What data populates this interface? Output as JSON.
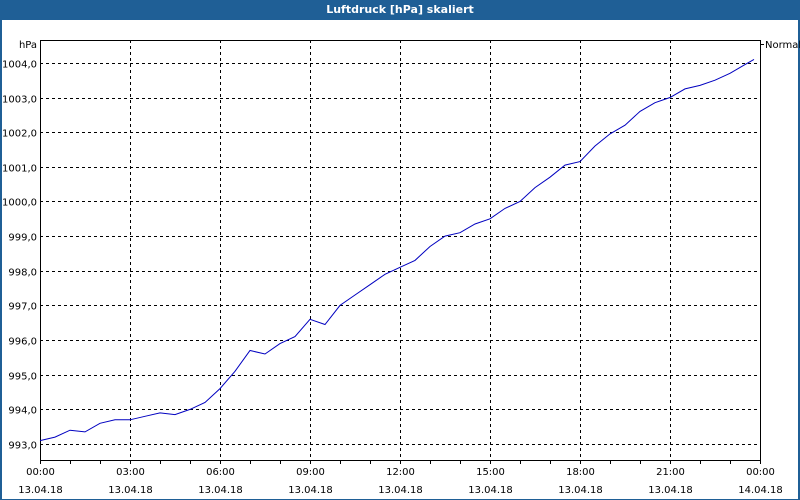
{
  "header": {
    "title": "Luftdruck [hPa] skaliert"
  },
  "chart_data": {
    "type": "line",
    "title": "Luftdruck [hPa] skaliert",
    "xlabel": "",
    "ylabel": "hPa",
    "legend": [
      "Normal"
    ],
    "legend_position": "top-right",
    "grid": true,
    "ylim": [
      992.54,
      1004.66
    ],
    "yticks": [
      "993,0",
      "994,0",
      "995,0",
      "996,0",
      "997,0",
      "998,0",
      "999,0",
      "1000,0",
      "1001,0",
      "1002,0",
      "1003,0",
      "1004,0"
    ],
    "xticks": [
      {
        "time": "00:00",
        "date": "13.04.18"
      },
      {
        "time": "03:00",
        "date": "13.04.18"
      },
      {
        "time": "06:00",
        "date": "13.04.18"
      },
      {
        "time": "09:00",
        "date": "13.04.18"
      },
      {
        "time": "12:00",
        "date": "13.04.18"
      },
      {
        "time": "15:00",
        "date": "13.04.18"
      },
      {
        "time": "18:00",
        "date": "13.04.18"
      },
      {
        "time": "21:00",
        "date": "13.04.18"
      },
      {
        "time": "00:00",
        "date": "14.04.18"
      }
    ],
    "series": [
      {
        "name": "Normal",
        "color": "#0000c0",
        "x_hours": [
          0,
          0.5,
          1,
          1.5,
          2,
          2.5,
          3,
          3.5,
          4,
          4.5,
          5,
          5.5,
          6,
          6.5,
          7,
          7.5,
          8,
          8.5,
          9,
          9.5,
          10,
          10.5,
          11,
          11.5,
          12,
          12.5,
          13,
          13.5,
          14,
          14.5,
          15,
          15.5,
          16,
          16.5,
          17,
          17.5,
          18,
          18.5,
          19,
          19.5,
          20,
          20.5,
          21,
          21.5,
          22,
          22.5,
          23,
          23.5,
          23.8
        ],
        "values": [
          993.1,
          993.2,
          993.4,
          993.35,
          993.6,
          993.7,
          993.7,
          993.8,
          993.9,
          993.85,
          994.0,
          994.2,
          994.6,
          995.1,
          995.7,
          995.6,
          995.9,
          996.1,
          996.6,
          996.45,
          997.0,
          997.3,
          997.6,
          997.9,
          998.1,
          998.3,
          998.7,
          999.0,
          999.1,
          999.35,
          999.5,
          999.8,
          1000.0,
          1000.4,
          1000.7,
          1001.05,
          1001.15,
          1001.6,
          1001.95,
          1002.2,
          1002.6,
          1002.85,
          1003.0,
          1003.25,
          1003.35,
          1003.5,
          1003.7,
          1003.95,
          1004.1
        ]
      }
    ]
  }
}
